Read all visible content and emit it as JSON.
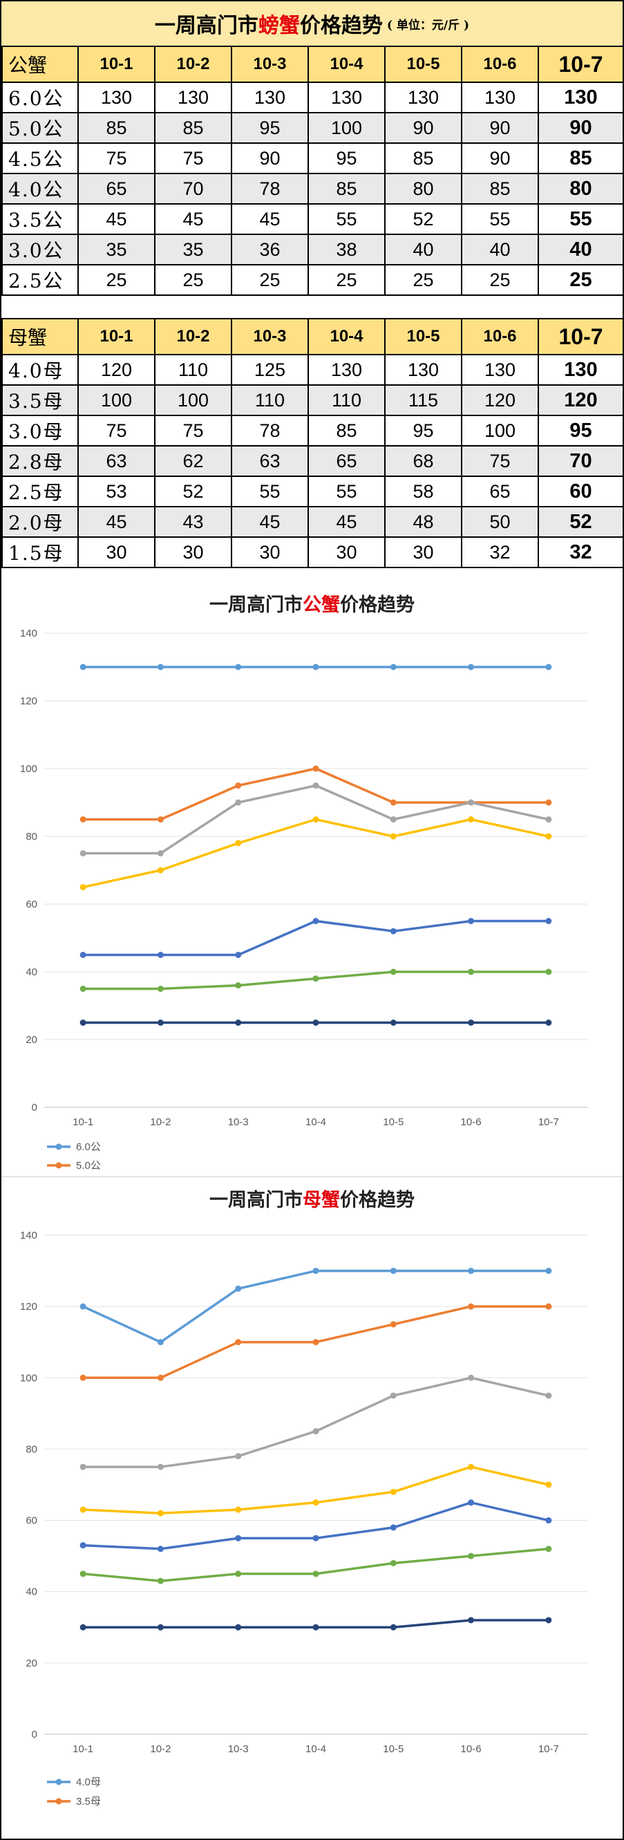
{
  "header": {
    "title_pre": "一周高门市",
    "title_hl": "螃蟹",
    "title_post": "价格趋势",
    "unit": "( 单位：元/斤 )"
  },
  "male_table": {
    "corner": "公蟹",
    "dates": [
      "10-1",
      "10-2",
      "10-3",
      "10-4",
      "10-5",
      "10-6",
      "10-7"
    ],
    "rows": [
      {
        "label": "6.0公",
        "values": [
          "130",
          "130",
          "130",
          "130",
          "130",
          "130",
          "130"
        ]
      },
      {
        "label": "5.0公",
        "values": [
          "85",
          "85",
          "95",
          "100",
          "90",
          "90",
          "90"
        ]
      },
      {
        "label": "4.5公",
        "values": [
          "75",
          "75",
          "90",
          "95",
          "85",
          "90",
          "85"
        ]
      },
      {
        "label": "4.0公",
        "values": [
          "65",
          "70",
          "78",
          "85",
          "80",
          "85",
          "80"
        ]
      },
      {
        "label": "3.5公",
        "values": [
          "45",
          "45",
          "45",
          "55",
          "52",
          "55",
          "55"
        ]
      },
      {
        "label": "3.0公",
        "values": [
          "35",
          "35",
          "36",
          "38",
          "40",
          "40",
          "40"
        ]
      },
      {
        "label": "2.5公",
        "values": [
          "25",
          "25",
          "25",
          "25",
          "25",
          "25",
          "25"
        ]
      }
    ]
  },
  "female_table": {
    "corner": "母蟹",
    "dates": [
      "10-1",
      "10-2",
      "10-3",
      "10-4",
      "10-5",
      "10-6",
      "10-7"
    ],
    "rows": [
      {
        "label": "4.0母",
        "values": [
          "120",
          "110",
          "125",
          "130",
          "130",
          "130",
          "130"
        ]
      },
      {
        "label": "3.5母",
        "values": [
          "100",
          "100",
          "110",
          "110",
          "115",
          "120",
          "120"
        ]
      },
      {
        "label": "3.0母",
        "values": [
          "75",
          "75",
          "78",
          "85",
          "95",
          "100",
          "95"
        ]
      },
      {
        "label": "2.8母",
        "values": [
          "63",
          "62",
          "63",
          "65",
          "68",
          "75",
          "70"
        ]
      },
      {
        "label": "2.5母",
        "values": [
          "53",
          "52",
          "55",
          "55",
          "58",
          "65",
          "60"
        ]
      },
      {
        "label": "2.0母",
        "values": [
          "45",
          "43",
          "45",
          "45",
          "48",
          "50",
          "52"
        ]
      },
      {
        "label": "1.5母",
        "values": [
          "30",
          "30",
          "30",
          "30",
          "30",
          "32",
          "32"
        ]
      }
    ]
  },
  "chart_data": [
    {
      "type": "line",
      "title_pre": "一周高门市",
      "title_hl": "公蟹",
      "title_post": "价格趋势",
      "x": [
        "10-1",
        "10-2",
        "10-3",
        "10-4",
        "10-5",
        "10-6",
        "10-7"
      ],
      "ylim": [
        0,
        140
      ],
      "yticks": [
        0,
        20,
        40,
        60,
        80,
        100,
        120,
        140
      ],
      "grid": true,
      "legend_visible": [
        "6.0公",
        "5.0公"
      ],
      "series": [
        {
          "name": "6.0公",
          "color": "#5b9bd5",
          "values": [
            130,
            130,
            130,
            130,
            130,
            130,
            130
          ]
        },
        {
          "name": "5.0公",
          "color": "#ed7d31",
          "values": [
            85,
            85,
            95,
            100,
            90,
            90,
            90
          ]
        },
        {
          "color": "#a5a5a5",
          "values": [
            75,
            75,
            90,
            95,
            85,
            90,
            85
          ]
        },
        {
          "color": "#ffc000",
          "values": [
            65,
            70,
            78,
            85,
            80,
            85,
            80
          ]
        },
        {
          "color": "#4472c4",
          "values": [
            45,
            45,
            45,
            55,
            52,
            55,
            55
          ]
        },
        {
          "color": "#70ad47",
          "values": [
            35,
            35,
            36,
            38,
            40,
            40,
            40
          ]
        },
        {
          "color": "#264478",
          "values": [
            25,
            25,
            25,
            25,
            25,
            25,
            25
          ]
        }
      ]
    },
    {
      "type": "line",
      "title_pre": "一周高门市",
      "title_hl": "母蟹",
      "title_post": "价格趋势",
      "x": [
        "10-1",
        "10-2",
        "10-3",
        "10-4",
        "10-5",
        "10-6",
        "10-7"
      ],
      "ylim": [
        0,
        140
      ],
      "yticks": [
        0,
        20,
        40,
        60,
        80,
        100,
        120,
        140
      ],
      "grid": true,
      "legend_visible": [
        "4.0母",
        "3.5母"
      ],
      "series": [
        {
          "name": "4.0母",
          "color": "#5b9bd5",
          "values": [
            120,
            110,
            125,
            130,
            130,
            130,
            130
          ]
        },
        {
          "name": "3.5母",
          "color": "#ed7d31",
          "values": [
            100,
            100,
            110,
            110,
            115,
            120,
            120
          ]
        },
        {
          "color": "#a5a5a5",
          "values": [
            75,
            75,
            78,
            85,
            95,
            100,
            95
          ]
        },
        {
          "color": "#ffc000",
          "values": [
            63,
            62,
            63,
            65,
            68,
            75,
            70
          ]
        },
        {
          "color": "#4472c4",
          "values": [
            53,
            52,
            55,
            55,
            58,
            65,
            60
          ]
        },
        {
          "color": "#70ad47",
          "values": [
            45,
            43,
            45,
            45,
            48,
            50,
            52
          ]
        },
        {
          "color": "#264478",
          "values": [
            30,
            30,
            30,
            30,
            30,
            32,
            32
          ]
        }
      ]
    }
  ]
}
